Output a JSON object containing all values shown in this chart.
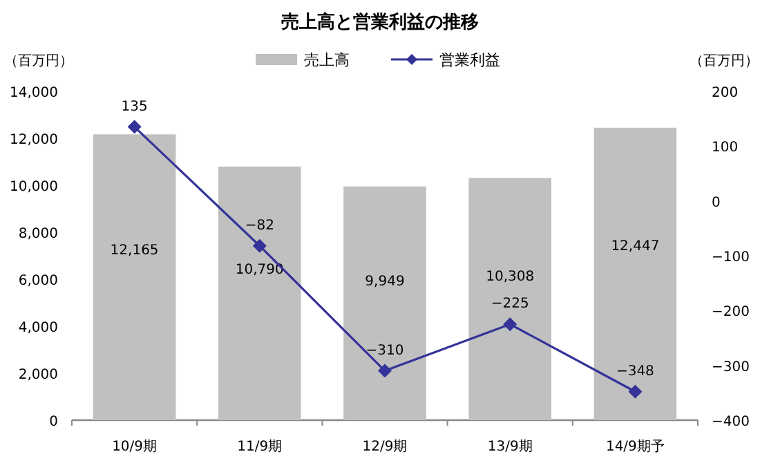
{
  "chart_data": {
    "type": "bar",
    "title": "売上高と営業利益の推移",
    "ylabel": "（百万円）",
    "y2label": "（百万円）",
    "categories": [
      "10/9期",
      "11/9期",
      "12/9期",
      "13/9期",
      "14/9期予"
    ],
    "series": [
      {
        "name": "売上高",
        "color": "#c0c0c0",
        "values": [
          12165,
          10790,
          9949,
          10308,
          12447
        ],
        "value_labels": [
          "12,165",
          "10,790",
          "9,949",
          "10,308",
          "12,447"
        ]
      },
      {
        "name": "営業利益",
        "type": "line",
        "axis": "y2",
        "color": "#333399",
        "marker": "diamond",
        "values": [
          135,
          -82,
          -310,
          -225,
          -348
        ],
        "value_labels": [
          "135",
          "−82",
          "−310",
          "−225",
          "−348"
        ]
      }
    ],
    "ylim": [
      0,
      14000
    ],
    "yticks": [
      0,
      {
        "value": 2000,
        "label": "2,000"
      },
      {
        "value": 4000,
        "label": "4,000"
      },
      {
        "value": 6000,
        "label": "6,000"
      },
      {
        "value": 8000,
        "label": "8,000"
      },
      {
        "value": 10000,
        "label": "10,000"
      },
      {
        "value": 12000,
        "label": "12,000"
      },
      {
        "value": 14000,
        "label": "14,000"
      }
    ],
    "y2lim": [
      -400,
      200
    ],
    "y2ticks": [
      {
        "value": -400,
        "label": "−400"
      },
      {
        "value": -300,
        "label": "−300"
      },
      {
        "value": -200,
        "label": "−200"
      },
      {
        "value": -100,
        "label": "−100"
      },
      0,
      100,
      200
    ],
    "legend": "top"
  }
}
